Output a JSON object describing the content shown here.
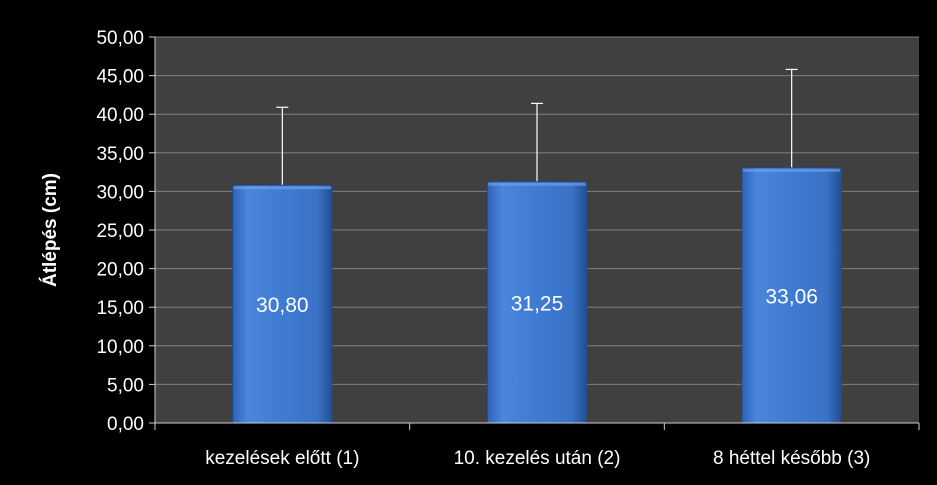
{
  "colors": {
    "background": "#000000",
    "plot_area": "#404040",
    "gridline": "#7f7f7f",
    "bar": "#3f7bd3",
    "bar_dark": "#2a5a9e",
    "text": "#ffffff",
    "error_bar": "#ffffff"
  },
  "chart_data": {
    "type": "bar",
    "title": "",
    "xlabel": "",
    "ylabel": "Átlépés (cm)",
    "categories": [
      "kezelések előtt (1)",
      "10. kezelés után (2)",
      "8 héttel később (3)"
    ],
    "values": [
      30.8,
      31.25,
      33.06
    ],
    "value_labels": [
      "30,80",
      "31,25",
      "33,06"
    ],
    "error_upper": [
      40.9,
      41.4,
      45.8
    ],
    "ylim": [
      0,
      50
    ],
    "yticks": [
      0,
      5,
      10,
      15,
      20,
      25,
      30,
      35,
      40,
      45,
      50
    ],
    "ytick_labels": [
      "0,00",
      "5,00",
      "10,00",
      "15,00",
      "20,00",
      "25,00",
      "30,00",
      "35,00",
      "40,00",
      "45,00",
      "50,00"
    ],
    "grid": true,
    "legend": "none"
  }
}
